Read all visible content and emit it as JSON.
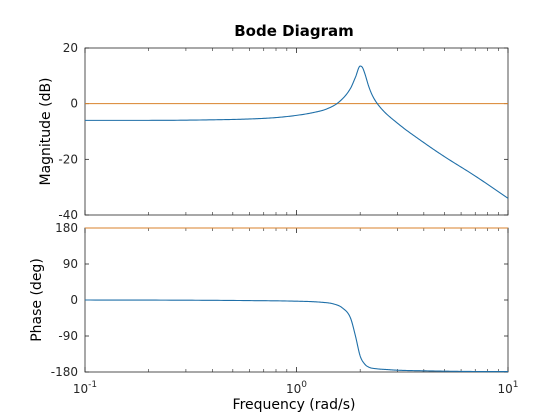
{
  "chart_data": {
    "type": "line",
    "title": "Bode Diagram",
    "xlabel": "Frequency  (rad/s)",
    "x_scale": "log",
    "xlim": [
      0.1,
      10
    ],
    "x_ticks": [
      {
        "value": 0.1,
        "base": "10",
        "exp": "-1"
      },
      {
        "value": 1,
        "base": "10",
        "exp": "0"
      },
      {
        "value": 10,
        "base": "10",
        "exp": "1"
      }
    ],
    "grid": false,
    "colors": {
      "response": "#1f6fa8",
      "reference": "#d9822b"
    },
    "panels": [
      {
        "id": "magnitude",
        "ylabel": "Magnitude (dB)",
        "ylim": [
          -40,
          20
        ],
        "y_ticks": [
          20,
          0,
          -20,
          -40
        ],
        "reference_line": 0,
        "series": {
          "x": [
            0.1,
            0.2,
            0.4,
            0.6,
            0.8,
            1.0,
            1.2,
            1.4,
            1.6,
            1.8,
            1.9,
            2.0,
            2.05,
            2.1,
            2.2,
            2.3,
            2.5,
            3.0,
            4.0,
            5.0,
            7.0,
            10.0
          ],
          "y": [
            -6.0,
            -6.0,
            -5.8,
            -5.5,
            -5.0,
            -4.2,
            -3.2,
            -1.8,
            0.8,
            5.5,
            9.5,
            13.5,
            13.0,
            11.0,
            6.0,
            2.5,
            -1.5,
            -7.0,
            -14.0,
            -19.0,
            -26.0,
            -34.0
          ]
        }
      },
      {
        "id": "phase",
        "ylabel": "Phase (deg)",
        "ylim": [
          -180,
          180
        ],
        "y_ticks": [
          180,
          90,
          0,
          -90,
          -180
        ],
        "reference_line": 180,
        "series": {
          "x": [
            0.1,
            0.3,
            0.6,
            1.0,
            1.3,
            1.5,
            1.65,
            1.8,
            1.9,
            2.0,
            2.1,
            2.2,
            2.4,
            2.7,
            3.0,
            4.0,
            6.0,
            10.0
          ],
          "y": [
            0,
            -0.5,
            -1.5,
            -3.0,
            -5.5,
            -10.0,
            -20.0,
            -45.0,
            -90.0,
            -140.0,
            -160.0,
            -168.0,
            -172.0,
            -174.0,
            -175.5,
            -177.0,
            -178.5,
            -179.0
          ]
        }
      }
    ]
  }
}
